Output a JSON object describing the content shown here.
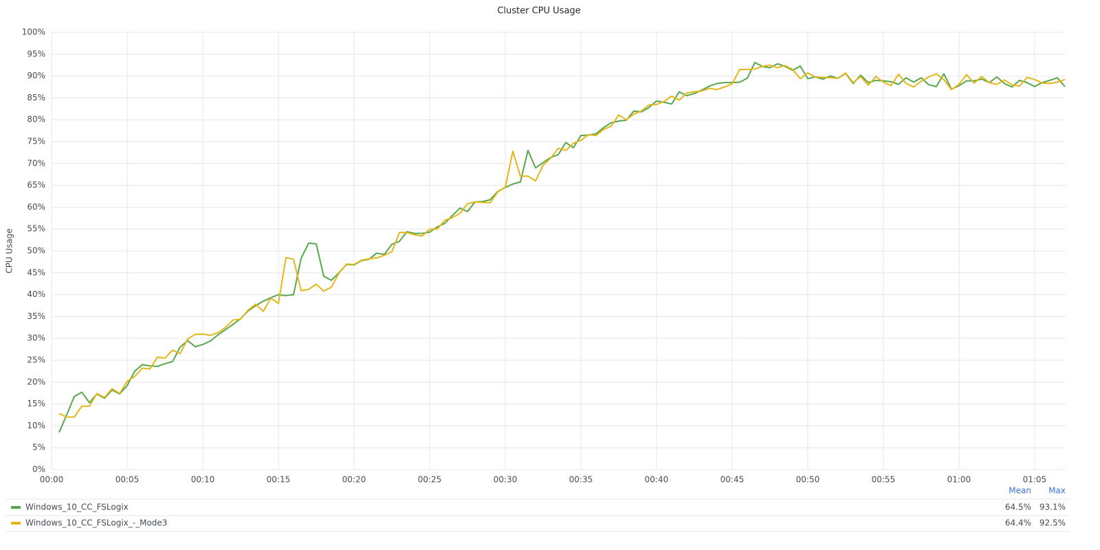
{
  "chart_data": {
    "type": "line",
    "title": "Cluster CPU Usage",
    "y_label": "CPU Usage",
    "x": [
      0.5,
      1,
      1.5,
      2,
      2.5,
      3,
      3.5,
      4,
      4.5,
      5,
      5.5,
      6,
      6.5,
      7,
      7.5,
      8,
      8.5,
      9,
      9.5,
      10,
      10.5,
      11,
      11.5,
      12,
      12.5,
      13,
      13.5,
      14,
      14.5,
      15,
      15.5,
      16,
      16.5,
      17,
      17.5,
      18,
      18.5,
      19,
      19.5,
      20,
      20.5,
      21,
      21.5,
      22,
      22.5,
      23,
      23.5,
      24,
      24.5,
      25,
      25.5,
      26,
      26.5,
      27,
      27.5,
      28,
      28.5,
      29,
      29.5,
      30,
      30.5,
      31,
      31.5,
      32,
      32.5,
      33,
      33.5,
      34,
      34.5,
      35,
      35.5,
      36,
      36.5,
      37,
      37.5,
      38,
      38.5,
      39,
      39.5,
      40,
      40.5,
      41,
      41.5,
      42,
      42.5,
      43,
      43.5,
      44,
      44.5,
      45,
      45.5,
      46,
      46.5,
      47,
      47.5,
      48,
      48.5,
      49,
      49.5,
      50,
      50.5,
      51,
      51.5,
      52,
      52.5,
      53,
      53.5,
      54,
      54.5,
      55,
      55.5,
      56,
      56.5,
      57,
      57.5,
      58,
      58.5,
      59,
      59.5,
      60,
      60.5,
      61,
      61.5,
      62,
      62.5,
      63,
      63.5,
      64,
      64.5,
      65,
      65.5,
      66,
      66.5,
      67
    ],
    "xlim": [
      0,
      67.05
    ],
    "xticks": [
      {
        "value": 0,
        "label": "00:00"
      },
      {
        "value": 5,
        "label": "00:05"
      },
      {
        "value": 10,
        "label": "00:10"
      },
      {
        "value": 15,
        "label": "00:15"
      },
      {
        "value": 20,
        "label": "00:20"
      },
      {
        "value": 25,
        "label": "00:25"
      },
      {
        "value": 30,
        "label": "00:30"
      },
      {
        "value": 35,
        "label": "00:35"
      },
      {
        "value": 40,
        "label": "00:40"
      },
      {
        "value": 45,
        "label": "00:45"
      },
      {
        "value": 50,
        "label": "00:50"
      },
      {
        "value": 55,
        "label": "00:55"
      },
      {
        "value": 60,
        "label": "01:00"
      },
      {
        "value": 65,
        "label": "01:05"
      }
    ],
    "ylim": [
      0,
      100
    ],
    "yticks": [
      {
        "value": 0,
        "label": "0%"
      },
      {
        "value": 5,
        "label": "5%"
      },
      {
        "value": 10,
        "label": "10%"
      },
      {
        "value": 15,
        "label": "15%"
      },
      {
        "value": 20,
        "label": "20%"
      },
      {
        "value": 25,
        "label": "25%"
      },
      {
        "value": 30,
        "label": "30%"
      },
      {
        "value": 35,
        "label": "35%"
      },
      {
        "value": 40,
        "label": "40%"
      },
      {
        "value": 45,
        "label": "45%"
      },
      {
        "value": 50,
        "label": "50%"
      },
      {
        "value": 55,
        "label": "55%"
      },
      {
        "value": 60,
        "label": "60%"
      },
      {
        "value": 65,
        "label": "65%"
      },
      {
        "value": 70,
        "label": "70%"
      },
      {
        "value": 75,
        "label": "75%"
      },
      {
        "value": 80,
        "label": "80%"
      },
      {
        "value": 85,
        "label": "85%"
      },
      {
        "value": 90,
        "label": "90%"
      },
      {
        "value": 95,
        "label": "95%"
      },
      {
        "value": 100,
        "label": "100%"
      }
    ],
    "grid": true,
    "legend_columns": [
      "Mean",
      "Max"
    ],
    "series": [
      {
        "name": "Windows_10_CC_FSLogix",
        "color": "#56a64b",
        "stats": [
          {
            "value": 64.5,
            "label": "64.5%"
          },
          {
            "value": 93.1,
            "label": "93.1%"
          }
        ],
        "values": [
          8.5,
          12.5,
          16.7,
          17.7,
          15.3,
          17.3,
          16.3,
          18.2,
          17.3,
          19.2,
          22.5,
          24.0,
          23.7,
          23.6,
          24.2,
          24.7,
          28.0,
          29.5,
          28.1,
          28.6,
          29.4,
          30.8,
          32.0,
          33.2,
          34.5,
          36.3,
          37.5,
          38.5,
          39.3,
          40.0,
          39.8,
          40.0,
          48.3,
          51.8,
          51.6,
          44.2,
          43.3,
          45.0,
          46.9,
          46.8,
          47.8,
          48.1,
          49.5,
          49.2,
          51.5,
          52.2,
          54.4,
          54.0,
          54.0,
          54.3,
          55.5,
          56.3,
          58.1,
          59.8,
          59.0,
          61.2,
          61.3,
          61.7,
          63.6,
          64.5,
          65.3,
          65.8,
          73.0,
          69.0,
          70.2,
          71.4,
          72.0,
          74.8,
          73.6,
          76.4,
          76.5,
          76.8,
          78.2,
          79.3,
          79.7,
          79.9,
          82.0,
          81.8,
          82.8,
          84.3,
          84.0,
          83.6,
          86.4,
          85.5,
          86.0,
          86.8,
          87.7,
          88.3,
          88.5,
          88.5,
          88.6,
          89.5,
          93.1,
          92.2,
          91.9,
          92.8,
          92.2,
          91.3,
          92.3,
          89.4,
          89.8,
          89.3,
          90.0,
          89.5,
          90.6,
          88.3,
          90.2,
          88.5,
          89.0,
          88.9,
          88.7,
          88.1,
          89.6,
          88.6,
          89.6,
          88.0,
          87.6,
          90.5,
          87.0,
          87.8,
          88.9,
          88.9,
          89.3,
          88.5,
          89.8,
          88.3,
          87.5,
          89.0,
          88.5,
          87.6,
          88.5,
          89.0,
          89.6,
          87.6
        ]
      },
      {
        "name": "Windows_10_CC_FSLogix_-_Mode3",
        "color": "#e5b616",
        "stats": [
          {
            "value": 64.4,
            "label": "64.4%"
          },
          {
            "value": 92.5,
            "label": "92.5%"
          }
        ],
        "values": [
          12.8,
          12.0,
          12.0,
          14.5,
          14.5,
          17.4,
          16.5,
          18.5,
          17.4,
          20.2,
          21.3,
          23.2,
          23.0,
          25.7,
          25.5,
          27.3,
          26.5,
          29.9,
          30.9,
          31.0,
          30.7,
          31.3,
          32.5,
          34.2,
          34.4,
          36.5,
          37.8,
          36.2,
          39.2,
          38.0,
          48.5,
          48.1,
          40.9,
          41.2,
          42.4,
          40.8,
          41.7,
          44.9,
          47.0,
          46.9,
          47.9,
          48.2,
          48.4,
          49.0,
          49.8,
          54.2,
          54.2,
          53.7,
          53.4,
          55.0,
          55.0,
          57.0,
          57.6,
          58.6,
          60.8,
          61.2,
          61.1,
          61.0,
          63.5,
          64.6,
          72.8,
          67.1,
          67.1,
          66.0,
          69.6,
          71.2,
          73.5,
          73.0,
          74.6,
          75.3,
          76.6,
          76.4,
          77.8,
          78.5,
          81.1,
          80.0,
          81.3,
          82.0,
          83.4,
          83.5,
          84.2,
          85.4,
          84.5,
          86.1,
          86.4,
          86.6,
          87.2,
          86.9,
          87.5,
          88.2,
          91.5,
          91.5,
          91.6,
          92.2,
          92.5,
          91.9,
          92.4,
          91.5,
          89.4,
          90.7,
          89.8,
          89.7,
          89.6,
          89.5,
          90.7,
          88.5,
          89.9,
          87.9,
          89.9,
          88.6,
          87.8,
          90.4,
          88.3,
          87.5,
          88.8,
          89.8,
          90.5,
          89.2,
          86.9,
          88.1,
          90.3,
          88.4,
          89.9,
          88.5,
          88.1,
          89.1,
          88.0,
          87.7,
          89.7,
          89.2,
          88.4,
          88.3,
          88.6,
          89.2
        ]
      }
    ]
  }
}
